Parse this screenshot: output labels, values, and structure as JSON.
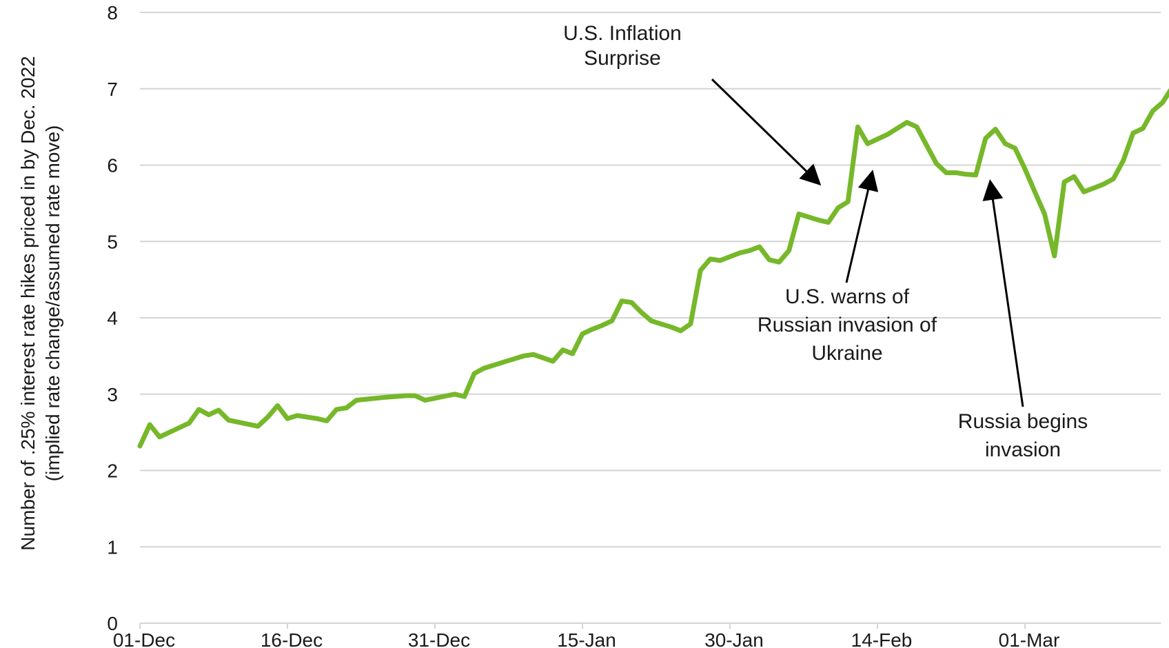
{
  "chart_data": {
    "type": "line",
    "title": "",
    "xlabel": "",
    "ylabel": "Number of .25% interest rate hikes priced in by Dec. 2022",
    "ylabel_sub": "(implied rate change/assumed rate move)",
    "ylim": [
      0,
      8
    ],
    "yticks": [
      0,
      1,
      2,
      3,
      4,
      5,
      6,
      7,
      8
    ],
    "xticks": [
      "01-Dec",
      "16-Dec",
      "31-Dec",
      "15-Jan",
      "30-Jan",
      "14-Feb",
      "01-Mar"
    ],
    "grid": true,
    "legend": "none",
    "series_color": "#76b82a",
    "series": [
      {
        "x_day": [
          0,
          1,
          2,
          5,
          6,
          7,
          8,
          9,
          12,
          13,
          14,
          15,
          16,
          18,
          19,
          20,
          21,
          22,
          25,
          26,
          27,
          28,
          29,
          32,
          33,
          34,
          35,
          36,
          37,
          38,
          39,
          40,
          42,
          43,
          44,
          45,
          46,
          47,
          48,
          49,
          50,
          51,
          52,
          53,
          54,
          55,
          56,
          57,
          58,
          59,
          60,
          61,
          62,
          63,
          64,
          65,
          66,
          67,
          68,
          69,
          70,
          71,
          72,
          73,
          74,
          75,
          76,
          77,
          78,
          79,
          80,
          81,
          82,
          83,
          84,
          85,
          86,
          87,
          88,
          89,
          90,
          91,
          92,
          93,
          94,
          95,
          96,
          97,
          98,
          99,
          100,
          101,
          102,
          103,
          104,
          105
        ],
        "values": [
          2.32,
          2.6,
          2.44,
          2.62,
          2.8,
          2.73,
          2.79,
          2.66,
          2.58,
          2.7,
          2.85,
          2.68,
          2.72,
          2.68,
          2.65,
          2.8,
          2.82,
          2.92,
          2.96,
          2.97,
          2.98,
          2.98,
          2.92,
          3.0,
          2.97,
          3.27,
          3.34,
          3.38,
          3.42,
          3.46,
          3.5,
          3.52,
          3.43,
          3.58,
          3.53,
          3.79,
          3.85,
          3.9,
          3.96,
          4.22,
          4.2,
          4.07,
          3.96,
          3.92,
          3.88,
          3.83,
          3.92,
          4.62,
          4.77,
          4.75,
          4.8,
          4.85,
          4.88,
          4.93,
          4.76,
          4.73,
          4.88,
          5.36,
          5.32,
          5.28,
          5.25,
          5.44,
          5.52,
          6.5,
          6.28,
          6.34,
          6.4,
          6.48,
          6.56,
          6.5,
          6.26,
          6.02,
          5.9,
          5.9,
          5.88,
          5.87,
          6.35,
          6.47,
          6.28,
          6.22,
          5.95,
          5.65,
          5.36,
          4.81,
          5.78,
          5.85,
          5.65,
          5.7,
          5.75,
          5.82,
          6.06,
          6.42,
          6.48,
          6.71,
          6.82,
          7.02
        ]
      }
    ],
    "annotations": [
      {
        "lines": [
          "U.S. Inflation",
          "Surprise"
        ]
      },
      {
        "lines": [
          "U.S. warns of",
          "Russian invasion of",
          "Ukraine"
        ]
      },
      {
        "lines": [
          "Russia begins",
          "invasion"
        ]
      }
    ]
  }
}
